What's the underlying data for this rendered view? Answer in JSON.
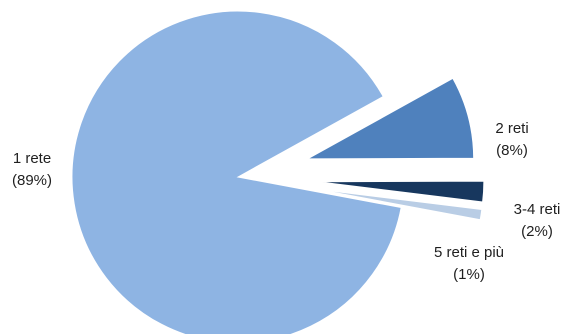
{
  "chart_data": {
    "type": "pie",
    "exploded": true,
    "start_angle_deg": -59,
    "direction": "counterclockwise",
    "slices": [
      {
        "label": "1 rete",
        "percent_label": "(89%)",
        "value": 89,
        "color": "#8EB4E3"
      },
      {
        "label": "2 reti",
        "percent_label": "(8%)",
        "value": 8,
        "color": "#4F81BD"
      },
      {
        "label": "3-4 reti",
        "percent_label": "(2%)",
        "value": 2,
        "color": "#17375E"
      },
      {
        "label": "5 reti e più",
        "percent_label": "(1%)",
        "value": 1,
        "color": "#B9CDE5"
      }
    ]
  }
}
